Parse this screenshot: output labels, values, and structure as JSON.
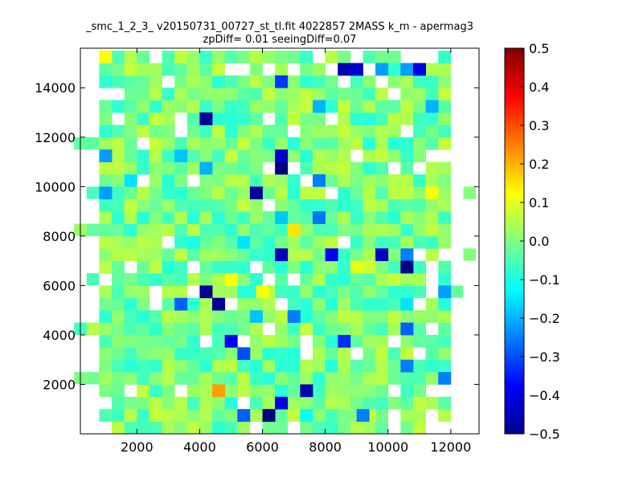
{
  "chart_data": {
    "type": "heatmap",
    "title": "_smc_1_2_3_ v20150731_00727_st_tl.fit 4022857 2MASS k_m - apermag3",
    "subtitle": "zpDiff= 0.01 seeingDiff=0.07",
    "xlabel": "",
    "ylabel": "",
    "xlim": [
      200,
      12900
    ],
    "ylim": [
      0,
      15600
    ],
    "x_ticks": [
      2000,
      4000,
      6000,
      8000,
      10000,
      12000
    ],
    "y_ticks": [
      2000,
      4000,
      6000,
      8000,
      10000,
      12000,
      14000
    ],
    "x_tick_labels": [
      "2000",
      "4000",
      "6000",
      "8000",
      "10000",
      "12000"
    ],
    "y_tick_labels": [
      "2000",
      "4000",
      "6000",
      "8000",
      "10000",
      "12000",
      "14000"
    ],
    "colormap": "jet",
    "clim": [
      -0.5,
      0.5
    ],
    "colorbar_ticks": [
      0.5,
      0.4,
      0.3,
      0.2,
      0.1,
      0.0,
      -0.1,
      -0.2,
      -0.3,
      -0.4,
      -0.5
    ],
    "colorbar_tick_labels": [
      "0.5",
      "0.4",
      "0.3",
      "0.2",
      "0.1",
      "0.0",
      "−0.1",
      "−0.2",
      "−0.3",
      "−0.4",
      "−0.5"
    ],
    "grid": false,
    "cell_size": [
      400,
      500
    ],
    "cells": [
      {
        "x": 1000,
        "y": 15250,
        "value": 0.12
      },
      {
        "x": 8600,
        "y": 14750,
        "value": -0.45
      },
      {
        "x": 9000,
        "y": 14750,
        "value": -0.42
      },
      {
        "x": 9800,
        "y": 14750,
        "value": -0.22
      },
      {
        "x": 10600,
        "y": 14750,
        "value": -0.22
      },
      {
        "x": 11000,
        "y": 14750,
        "value": -0.4
      },
      {
        "x": 6600,
        "y": 14250,
        "value": -0.32
      },
      {
        "x": 7800,
        "y": 13250,
        "value": -0.2
      },
      {
        "x": 11400,
        "y": 13250,
        "value": -0.2
      },
      {
        "x": 4200,
        "y": 12750,
        "value": -0.48
      },
      {
        "x": 1000,
        "y": 11250,
        "value": -0.22
      },
      {
        "x": 3400,
        "y": 11250,
        "value": -0.18
      },
      {
        "x": 6600,
        "y": 11250,
        "value": -0.42
      },
      {
        "x": 4200,
        "y": 10750,
        "value": -0.2
      },
      {
        "x": 6600,
        "y": 10750,
        "value": -0.5
      },
      {
        "x": 1800,
        "y": 10250,
        "value": -0.15
      },
      {
        "x": 7800,
        "y": 10250,
        "value": -0.25
      },
      {
        "x": 5800,
        "y": 9750,
        "value": -0.48
      },
      {
        "x": 1000,
        "y": 9750,
        "value": -0.22
      },
      {
        "x": 11400,
        "y": 9750,
        "value": 0.12
      },
      {
        "x": 6600,
        "y": 8750,
        "value": -0.18
      },
      {
        "x": 7800,
        "y": 8750,
        "value": -0.26
      },
      {
        "x": 7000,
        "y": 8250,
        "value": 0.15
      },
      {
        "x": 5400,
        "y": 7750,
        "value": -0.15
      },
      {
        "x": 3800,
        "y": 7750,
        "value": -0.1
      },
      {
        "x": 6600,
        "y": 7250,
        "value": -0.44
      },
      {
        "x": 8200,
        "y": 7250,
        "value": -0.38
      },
      {
        "x": 9800,
        "y": 7250,
        "value": -0.44
      },
      {
        "x": 10600,
        "y": 7250,
        "value": -0.25
      },
      {
        "x": 9000,
        "y": 6750,
        "value": 0.1
      },
      {
        "x": 9400,
        "y": 6750,
        "value": 0.08
      },
      {
        "x": 10600,
        "y": 6750,
        "value": -0.5
      },
      {
        "x": 5000,
        "y": 6250,
        "value": 0.12
      },
      {
        "x": 4200,
        "y": 5750,
        "value": -0.48
      },
      {
        "x": 6000,
        "y": 5750,
        "value": 0.12
      },
      {
        "x": 11800,
        "y": 5750,
        "value": -0.22
      },
      {
        "x": 3400,
        "y": 5250,
        "value": -0.28
      },
      {
        "x": 4600,
        "y": 5250,
        "value": -0.48
      },
      {
        "x": 10600,
        "y": 5250,
        "value": -0.15
      },
      {
        "x": 5800,
        "y": 4750,
        "value": -0.18
      },
      {
        "x": 7000,
        "y": 4750,
        "value": -0.25
      },
      {
        "x": 10600,
        "y": 4250,
        "value": -0.28
      },
      {
        "x": 5000,
        "y": 3750,
        "value": -0.38
      },
      {
        "x": 8600,
        "y": 3750,
        "value": -0.33
      },
      {
        "x": 5400,
        "y": 3250,
        "value": -0.3
      },
      {
        "x": 10600,
        "y": 2750,
        "value": -0.25
      },
      {
        "x": 11800,
        "y": 2250,
        "value": -0.25
      },
      {
        "x": 7400,
        "y": 1750,
        "value": -0.45
      },
      {
        "x": 4600,
        "y": 1750,
        "value": 0.22
      },
      {
        "x": 6600,
        "y": 1250,
        "value": -0.4
      },
      {
        "x": 5400,
        "y": 750,
        "value": -0.28
      },
      {
        "x": 6200,
        "y": 750,
        "value": -0.5
      },
      {
        "x": 9200,
        "y": 750,
        "value": -0.25
      },
      {
        "x": 7400,
        "y": 750,
        "value": -0.12
      }
    ]
  }
}
